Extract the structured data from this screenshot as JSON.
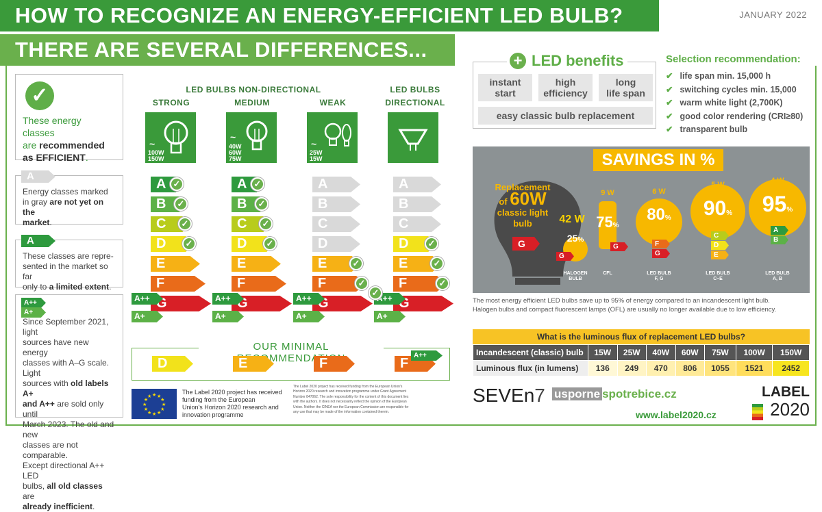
{
  "header": {
    "title1": "HOW TO RECOGNIZE AN ENERGY-EFFICIENT LED BULB?",
    "title2": "THERE ARE SEVERAL DIFFERENCES...",
    "date": "JANUARY 2022"
  },
  "sidebar": {
    "recommended": {
      "line1": "These energy classes",
      "line2a": "are ",
      "line2b": "recommended",
      "line3a": "as ",
      "line3b": "EFFICIENT",
      "line3c": "."
    },
    "gray": {
      "label": "A",
      "t1": "Energy classes marked",
      "t2a": "in gray ",
      "t2b": "are not yet on the",
      "t3": "market",
      "t3c": "."
    },
    "limited": {
      "label": "A",
      "t1": "These classes are repre-",
      "t2": "sented in the market so far",
      "t3a": "only to ",
      "t3b": "a limited extent",
      "t3c": "."
    },
    "old": {
      "l1": "A++",
      "l2": "A+",
      "t1": "Since September 2021, light",
      "t2": "sources have new energy",
      "t3": "classes with A–G scale. Light",
      "t4a": "sources with ",
      "t4b": "old labels A+",
      "t5a": "and A++",
      "t5b": " are sold only until",
      "t6": "March 2023. The old and new",
      "t7": "classes are not comparable.",
      "t8": "Except directional A++ LED",
      "t9a": "bulbs, ",
      "t9b": "all old classes",
      "t9c": " are",
      "t10": "already inefficient",
      "t10c": "."
    }
  },
  "columns": {
    "nondir_title": "LED BULBS NON-DIRECTIONAL",
    "dir_title1": "LED BULBS",
    "dir_title2": "DIRECTIONAL",
    "strong": {
      "title": "STRONG",
      "w1": "100W",
      "w2": "150W"
    },
    "medium": {
      "title": "MEDIUM",
      "w1": "40W",
      "w2": "60W",
      "w3": "75W"
    },
    "weak": {
      "title": "WEAK",
      "w1": "25W",
      "w2": "15W"
    },
    "tilde": "~",
    "classes": [
      "A",
      "B",
      "C",
      "D",
      "E",
      "F",
      "G"
    ],
    "old_classes": [
      "A++",
      "A+"
    ],
    "check": "✓"
  },
  "minimal": {
    "title": "OUR MINIMAL RECOMMENDATION",
    "values": [
      "D",
      "E",
      "F",
      "F"
    ],
    "extra": "A++"
  },
  "benefits": {
    "title": "LED benefits",
    "plus": "+",
    "items": [
      "instant start",
      "high efficiency",
      "long life span"
    ],
    "items_split": [
      [
        "instant",
        "start"
      ],
      [
        "high",
        "efficiency"
      ],
      [
        "long",
        "life span"
      ]
    ],
    "wide": "easy classic bulb replacement"
  },
  "selection": {
    "title": "Selection recommendation:",
    "items": [
      "life span min. 15,000 h",
      "switching cycles min. 15,000",
      "warm white light (2,700K)",
      "good color rendering (CRI≥80)",
      "transparent bulb"
    ]
  },
  "savings": {
    "title": "SAVINGS IN %",
    "replacement": {
      "l1": "Replacement",
      "l2a": "of ",
      "l2b": "60W",
      "l3": "classic light",
      "l4": "bulb",
      "cls": "G"
    },
    "bulbs": [
      {
        "watts": "42 W",
        "pct": "25",
        "cls": "G",
        "name1": "HALOGEN",
        "name2": "BULB"
      },
      {
        "watts": "9 W",
        "pct": "75",
        "cls": "G",
        "name1": "CFL",
        "name2": ""
      },
      {
        "watts": "6 W",
        "pct": "80",
        "cls": "F, G",
        "cls_list": [
          "F",
          "G"
        ],
        "name1": "LED BULB",
        "name2": "F, G"
      },
      {
        "watts": "5 W",
        "pct": "90",
        "cls_list": [
          "C",
          "D",
          "E"
        ],
        "name1": "LED BULB",
        "name2": "C–E"
      },
      {
        "watts": "4 W",
        "pct": "95",
        "cls_list": [
          "A",
          "B"
        ],
        "name1": "LED BULB",
        "name2": "A, B"
      }
    ],
    "pct_sign": "%",
    "note1": "The most energy efficient LED bulbs save up to 95% of energy compared to an incandescent light bulb.",
    "note2": "Halogen bulbs and compact fluorescent lamps (OFL) are usually no longer available due to low efficiency."
  },
  "lumens": {
    "title": "What is the luminous flux of replacement LED bulbs?",
    "row1_label": "Incandescent (classic) bulb",
    "row2_label": "Luminous flux (in lumens)",
    "watts": [
      "15W",
      "25W",
      "40W",
      "60W",
      "75W",
      "100W",
      "150W"
    ],
    "flux": [
      "136",
      "249",
      "470",
      "806",
      "1055",
      "1521",
      "2452"
    ]
  },
  "footer": {
    "eu_text1": "The Label 2020 project has received",
    "eu_text2": "funding from the European",
    "eu_text3": "Union's Horizon 2020 research and",
    "eu_text4": "innovation programme",
    "fine1": "The Label 2020 project has received funding from the European Union's",
    "fine2": "Horizon 2020 research and innovation programme under Grant Agreement",
    "fine3": "Number 847062. The sole responsibility for the content of this document lies",
    "fine4": "with the authors. It does not necessarily reflect the opinion of the European",
    "fine5": "Union. Neither the CINEA nor the European Commission are responsible for",
    "fine6": "any use that may be made of the information contained therein.",
    "seven": "SEVEn",
    "seven_num": "7",
    "usporne1": "usporne",
    "usporne2": "spotrebice.cz",
    "url": "www.label2020.cz",
    "label1": "LABEL",
    "label2": "2020"
  },
  "colors": {
    "A": "#2e9a3e",
    "B": "#5cb147",
    "C": "#b8cc1c",
    "D": "#f2e21b",
    "E": "#f6b115",
    "F": "#e96b1a",
    "G": "#d81f26",
    "gray": "#d9d9d9",
    "brand": "#3a9a3a"
  }
}
